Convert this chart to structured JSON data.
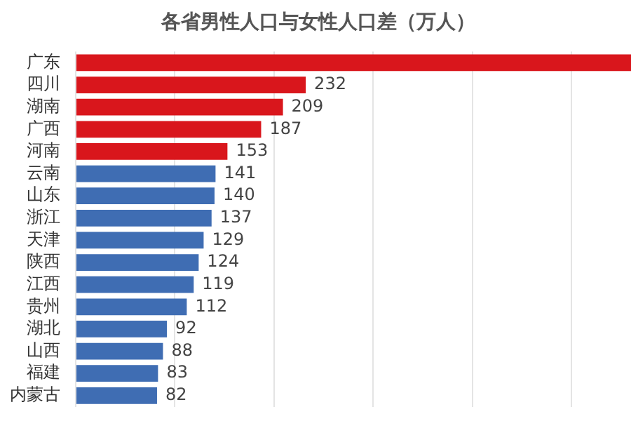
{
  "chart_data": {
    "type": "bar",
    "orientation": "horizontal",
    "title": "各省男性人口与女性人口差（万人）",
    "categories": [
      "广东",
      "四川",
      "湖南",
      "广西",
      "河南",
      "云南",
      "山东",
      "浙江",
      "天津",
      "陕西",
      "江西",
      "贵州",
      "湖北",
      "山西",
      "福建",
      "内蒙古"
    ],
    "values": [
      560,
      232,
      209,
      187,
      153,
      141,
      140,
      137,
      129,
      124,
      119,
      112,
      92,
      88,
      83,
      82
    ],
    "colors": [
      "#d9161c",
      "#d9161c",
      "#d9161c",
      "#d9161c",
      "#d9161c",
      "#3f6db3",
      "#3f6db3",
      "#3f6db3",
      "#3f6db3",
      "#3f6db3",
      "#3f6db3",
      "#3f6db3",
      "#3f6db3",
      "#3f6db3",
      "#3f6db3",
      "#3f6db3"
    ],
    "value_labels": [
      null,
      "232",
      "209",
      "187",
      "153",
      "141",
      "140",
      "137",
      "129",
      "124",
      "119",
      "112",
      "92",
      "88",
      "83",
      "82"
    ],
    "xlim": [
      0,
      560
    ],
    "xticks": [
      {
        "value": 0,
        "label": null
      },
      {
        "value": 100,
        "label": null
      },
      {
        "value": 200,
        "label": null
      },
      {
        "value": 300,
        "label": null
      },
      {
        "value": 400,
        "label": null
      },
      {
        "value": 500,
        "label": null
      }
    ],
    "grid": "x",
    "tick_labels": "y"
  }
}
